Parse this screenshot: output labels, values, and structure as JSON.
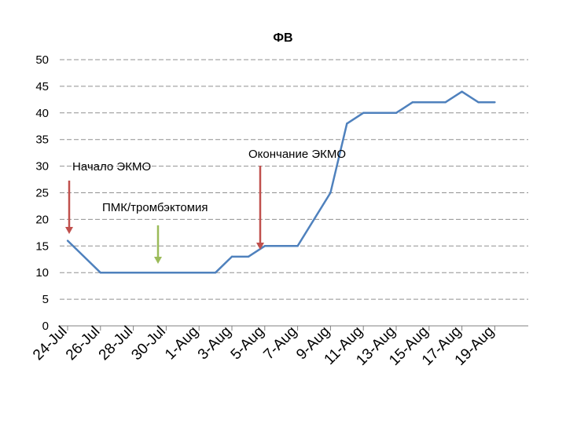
{
  "chart_data": {
    "type": "line",
    "title": "ФВ",
    "xlabel": "",
    "ylabel": "",
    "ylim": [
      0,
      50
    ],
    "yticks": [
      0,
      5,
      10,
      15,
      20,
      25,
      30,
      35,
      40,
      45,
      50
    ],
    "grid": "horizontal dashed",
    "legend": "none",
    "x_tick_labels": [
      "24-Jul",
      "26-Jul",
      "28-Jul",
      "30-Jul",
      "1-Aug",
      "3-Aug",
      "5-Aug",
      "7-Aug",
      "9-Aug",
      "11-Aug",
      "13-Aug",
      "15-Aug",
      "17-Aug",
      "19-Aug"
    ],
    "series": [
      {
        "color": "#4f81bd",
        "points": [
          {
            "x": "24-Jul",
            "y": 16
          },
          {
            "x": "26-Jul",
            "y": 10
          },
          {
            "x": "2-Aug",
            "y": 10
          },
          {
            "x": "3-Aug",
            "y": 13
          },
          {
            "x": "4-Aug",
            "y": 13
          },
          {
            "x": "5-Aug",
            "y": 15
          },
          {
            "x": "7-Aug",
            "y": 15
          },
          {
            "x": "9-Aug",
            "y": 25
          },
          {
            "x": "10-Aug",
            "y": 38
          },
          {
            "x": "11-Aug",
            "y": 40
          },
          {
            "x": "13-Aug",
            "y": 40
          },
          {
            "x": "14-Aug",
            "y": 42
          },
          {
            "x": "16-Aug",
            "y": 42
          },
          {
            "x": "17-Aug",
            "y": 44
          },
          {
            "x": "18-Aug",
            "y": 42
          },
          {
            "x": "19-Aug",
            "y": 42
          }
        ]
      }
    ],
    "annotations": [
      {
        "text": "Начало ЭКМО",
        "arrow_color": "#c0504d",
        "x": "24-Jul"
      },
      {
        "text": "ПМК/тромбэктомия",
        "arrow_color": "#9bbb59",
        "x": "30-Jul"
      },
      {
        "text": "Окончание ЭКМО",
        "arrow_color": "#c0504d",
        "x": "4-Aug"
      }
    ]
  }
}
